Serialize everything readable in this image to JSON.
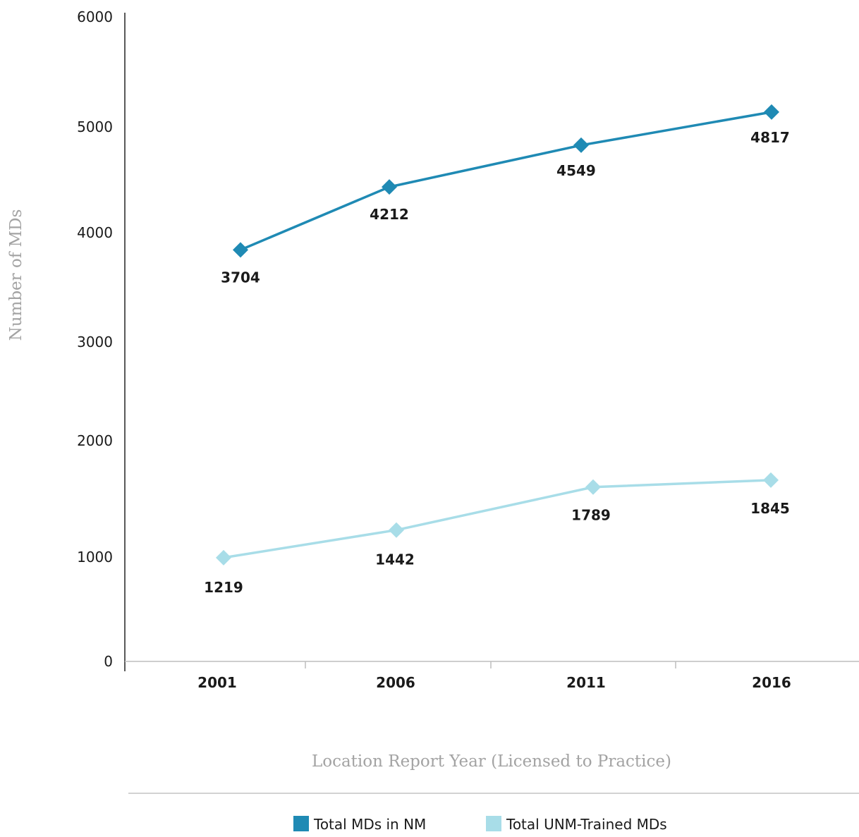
{
  "chart_data": {
    "type": "line",
    "categories": [
      "2001",
      "2006",
      "2011",
      "2016"
    ],
    "series": [
      {
        "name": "Total MDs in NM",
        "values": [
          3704,
          4212,
          4549,
          4817
        ],
        "color": "#1f8ab4",
        "marker": "diamond"
      },
      {
        "name": "Total UNM-Trained MDs",
        "values": [
          1219,
          1442,
          1789,
          1845
        ],
        "color": "#a8dde8",
        "marker": "diamond"
      }
    ],
    "yticks": [
      "0",
      "1000",
      "2000",
      "3000",
      "4000",
      "5000",
      "6000"
    ],
    "ylim": [
      0,
      6000
    ],
    "xlabel": "Location Report Year (Licensed to Practice)",
    "ylabel": "Number of MDs",
    "grid": false,
    "legend_position": "bottom-center"
  }
}
